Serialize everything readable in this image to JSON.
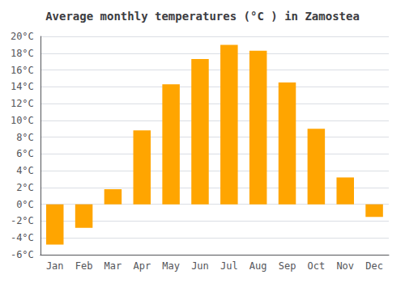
{
  "chart_data": {
    "type": "bar",
    "title": "Average monthly temperatures (°C ) in Zamostea",
    "categories": [
      "Jan",
      "Feb",
      "Mar",
      "Apr",
      "May",
      "Jun",
      "Jul",
      "Aug",
      "Sep",
      "Oct",
      "Nov",
      "Dec"
    ],
    "values": [
      -4.8,
      -2.8,
      1.8,
      8.8,
      14.3,
      17.3,
      19.0,
      18.3,
      14.5,
      9.0,
      3.2,
      -1.5
    ],
    "color": "#FFA500",
    "ylim": [
      -6,
      20
    ],
    "yticks": [
      {
        "value": -6,
        "label": "-6°C"
      },
      {
        "value": -4,
        "label": "-4°C"
      },
      {
        "value": -2,
        "label": "-2°C"
      },
      {
        "value": 0,
        "label": "0°C"
      },
      {
        "value": 2,
        "label": "2°C"
      },
      {
        "value": 4,
        "label": "4°C"
      },
      {
        "value": 6,
        "label": "6°C"
      },
      {
        "value": 8,
        "label": "8°C"
      },
      {
        "value": 10,
        "label": "10°C"
      },
      {
        "value": 12,
        "label": "12°C"
      },
      {
        "value": 14,
        "label": "14°C"
      },
      {
        "value": 16,
        "label": "16°C"
      },
      {
        "value": 18,
        "label": "18°C"
      },
      {
        "value": 20,
        "label": "20°C"
      }
    ],
    "grid": true
  }
}
